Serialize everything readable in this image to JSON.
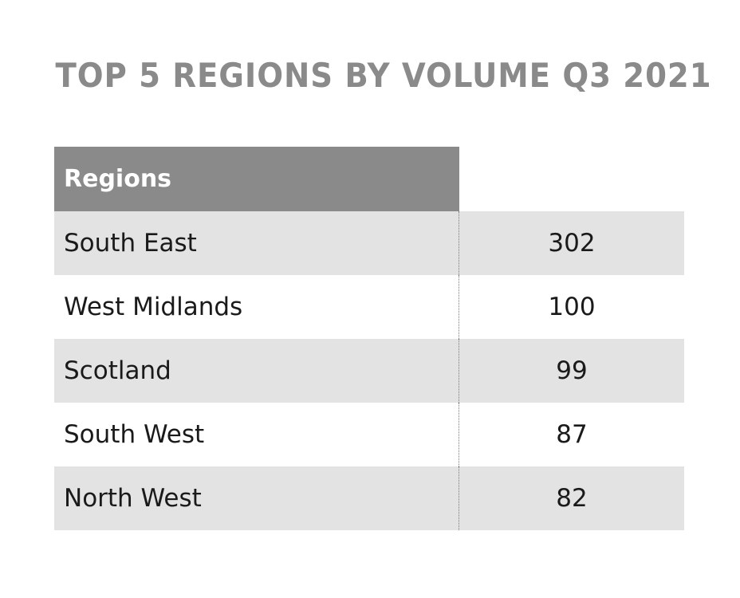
{
  "chart_data": {
    "type": "table",
    "title": "TOP 5 REGIONS BY VOLUME Q3 2021",
    "columns": [
      "Regions",
      ""
    ],
    "rows": [
      {
        "region": "South East",
        "value": "302"
      },
      {
        "region": "West Midlands",
        "value": "100"
      },
      {
        "region": "Scotland",
        "value": "99"
      },
      {
        "region": "South West",
        "value": "87"
      },
      {
        "region": "North West",
        "value": "82"
      }
    ]
  },
  "colors": {
    "title": "#8a8a8a",
    "header_bg": "#8a8a8a",
    "header_text": "#ffffff",
    "row_shade": "#e3e3e3",
    "text": "#1a1a1a"
  }
}
